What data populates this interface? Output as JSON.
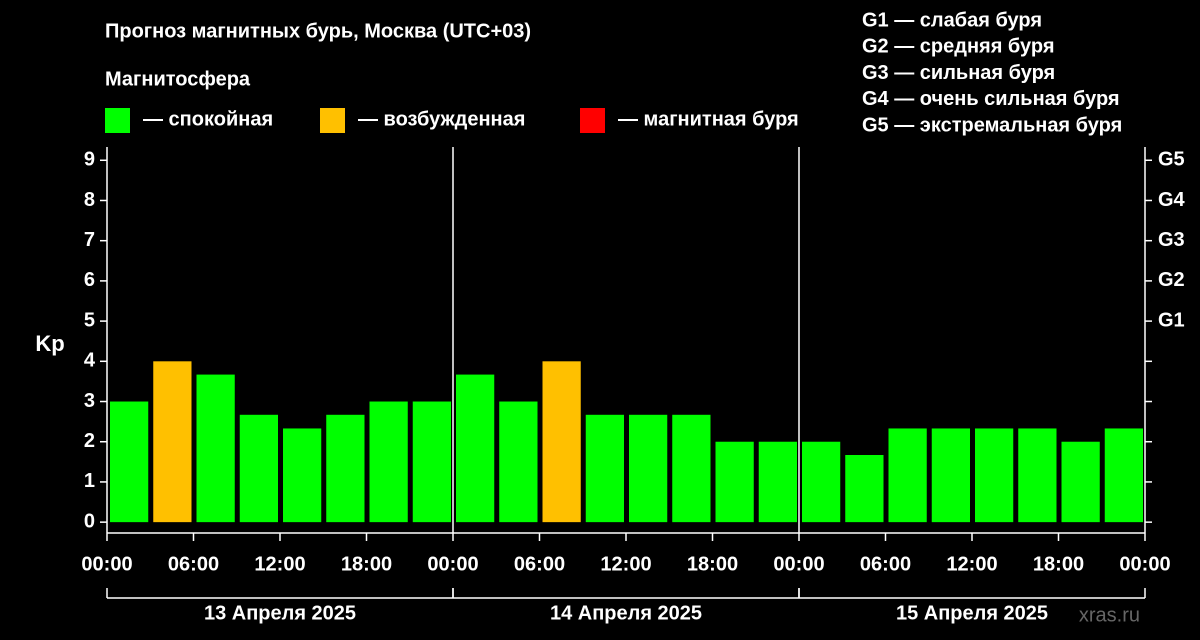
{
  "chart_data": {
    "type": "bar",
    "title": "Прогноз магнитных бурь, Москва (UTC+03)",
    "ylabel": "Kp",
    "legend": {
      "title": "Магнитосфера",
      "items": [
        {
          "label": "— спокойная",
          "color": "#00ff00"
        },
        {
          "label": "— возбужденная",
          "color": "#ffc000"
        },
        {
          "label": "— магнитная буря",
          "color": "#ff0000"
        }
      ]
    },
    "scale_notes": [
      "G1 — слабая буря",
      "G2 — средняя буря",
      "G3 — сильная буря",
      "G4 — очень сильная буря",
      "G5 — экстремальная буря"
    ],
    "x": [
      0,
      3,
      6,
      9,
      12,
      15,
      18,
      21,
      24,
      27,
      30,
      33,
      36,
      39,
      42,
      45,
      48,
      51,
      54,
      57,
      60,
      63,
      66,
      69
    ],
    "values": [
      3,
      4,
      3.67,
      2.67,
      2.33,
      2.67,
      3,
      3,
      3.67,
      3,
      4,
      2.67,
      2.67,
      2.67,
      2,
      2,
      2,
      1.67,
      2.33,
      2.33,
      2.33,
      2.33,
      2,
      2.33
    ],
    "colors": [
      "#00ff00",
      "#ffc000",
      "#00ff00",
      "#00ff00",
      "#00ff00",
      "#00ff00",
      "#00ff00",
      "#00ff00",
      "#00ff00",
      "#00ff00",
      "#ffc000",
      "#00ff00",
      "#00ff00",
      "#00ff00",
      "#00ff00",
      "#00ff00",
      "#00ff00",
      "#00ff00",
      "#00ff00",
      "#00ff00",
      "#00ff00",
      "#00ff00",
      "#00ff00",
      "#00ff00"
    ],
    "bar_span": 3,
    "xlim": [
      0,
      72
    ],
    "xticks": [
      {
        "value": 0,
        "label": "00:00"
      },
      {
        "value": 6,
        "label": "06:00"
      },
      {
        "value": 12,
        "label": "12:00"
      },
      {
        "value": 18,
        "label": "18:00"
      },
      {
        "value": 24,
        "label": "00:00"
      },
      {
        "value": 30,
        "label": "06:00"
      },
      {
        "value": 36,
        "label": "12:00"
      },
      {
        "value": 42,
        "label": "18:00"
      },
      {
        "value": 48,
        "label": "00:00"
      },
      {
        "value": 54,
        "label": "06:00"
      },
      {
        "value": 60,
        "label": "12:00"
      },
      {
        "value": 66,
        "label": "18:00"
      },
      {
        "value": 72,
        "label": "00:00"
      }
    ],
    "day_lines": [
      24,
      48
    ],
    "groups": [
      {
        "label": "13 Апреля 2025",
        "range": [
          0,
          24
        ]
      },
      {
        "label": "14 Апреля 2025",
        "range": [
          24,
          48
        ]
      },
      {
        "label": "15 Апреля 2025",
        "range": [
          48,
          72
        ]
      }
    ],
    "ylim": [
      -0.27,
      9.33
    ],
    "yticks": [
      0,
      1,
      2,
      3,
      4,
      5,
      6,
      7,
      8,
      9
    ],
    "y2ticks": [
      {
        "value": 5,
        "label": "G1"
      },
      {
        "value": 6,
        "label": "G2"
      },
      {
        "value": 7,
        "label": "G3"
      },
      {
        "value": 8,
        "label": "G4"
      },
      {
        "value": 9,
        "label": "G5"
      }
    ],
    "watermark": "xras.ru"
  }
}
